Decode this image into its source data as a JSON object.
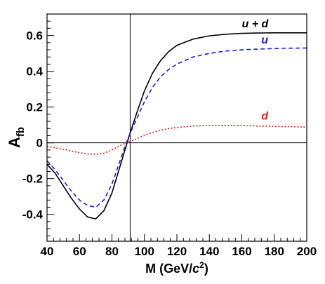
{
  "chart_data": {
    "type": "line",
    "xlabel": {
      "main": "M (GeV/",
      "italic": "c",
      "sup": "2",
      "close": ")"
    },
    "ylabel": {
      "main": "A",
      "sub": "fb"
    },
    "xlim": [
      40,
      200
    ],
    "ylim": [
      -0.55,
      0.72
    ],
    "xticks": [
      40,
      60,
      80,
      100,
      120,
      140,
      160,
      180,
      200
    ],
    "xtick_labels": [
      "40",
      "60",
      "80",
      "100",
      "120",
      "140",
      "160",
      "180",
      "200"
    ],
    "yticks": [
      -0.4,
      -0.2,
      0,
      0.2,
      0.4,
      0.6
    ],
    "ytick_labels": [
      "-0.4",
      "-0.2",
      "0",
      "0.2",
      "0.4",
      "0.6"
    ],
    "reference_lines": {
      "vertical_x": 91.2,
      "horizontal_y": 0
    },
    "grid": false,
    "series": [
      {
        "name": "u + d",
        "color": "#000000",
        "style": "solid",
        "x": [
          40,
          45,
          50,
          55,
          60,
          65,
          70,
          75,
          80,
          85,
          88,
          91,
          95,
          100,
          105,
          110,
          115,
          120,
          130,
          140,
          150,
          160,
          170,
          180,
          190,
          200
        ],
        "y": [
          -0.12,
          -0.17,
          -0.24,
          -0.31,
          -0.37,
          -0.415,
          -0.425,
          -0.38,
          -0.28,
          -0.13,
          -0.04,
          0.05,
          0.16,
          0.29,
          0.39,
          0.46,
          0.51,
          0.545,
          0.58,
          0.598,
          0.607,
          0.612,
          0.614,
          0.615,
          0.615,
          0.615
        ]
      },
      {
        "name": "u",
        "color": "#1a1ae6",
        "style": "dashed",
        "x": [
          40,
          45,
          50,
          55,
          60,
          65,
          70,
          75,
          80,
          85,
          88,
          91,
          95,
          100,
          105,
          110,
          115,
          120,
          130,
          140,
          150,
          160,
          170,
          180,
          190,
          200
        ],
        "y": [
          -0.1,
          -0.15,
          -0.21,
          -0.27,
          -0.32,
          -0.35,
          -0.36,
          -0.32,
          -0.23,
          -0.1,
          -0.02,
          0.05,
          0.13,
          0.23,
          0.31,
          0.37,
          0.41,
          0.44,
          0.48,
          0.5,
          0.513,
          0.52,
          0.524,
          0.527,
          0.529,
          0.53
        ]
      },
      {
        "name": "d",
        "color": "#e61a1a",
        "style": "dotted",
        "x": [
          40,
          45,
          50,
          55,
          60,
          65,
          70,
          75,
          80,
          85,
          88,
          91,
          95,
          100,
          105,
          110,
          115,
          120,
          130,
          140,
          150,
          160,
          170,
          180,
          190,
          200
        ],
        "y": [
          -0.02,
          -0.028,
          -0.036,
          -0.046,
          -0.055,
          -0.062,
          -0.064,
          -0.058,
          -0.04,
          -0.016,
          -0.003,
          0.008,
          0.022,
          0.042,
          0.058,
          0.07,
          0.08,
          0.086,
          0.094,
          0.097,
          0.097,
          0.096,
          0.094,
          0.092,
          0.09,
          0.088
        ]
      }
    ],
    "series_labels": [
      {
        "text": "u + d",
        "color": "#000000",
        "x": 160,
        "y": 0.645
      },
      {
        "text": "u",
        "color": "#1a1ae6",
        "x": 172,
        "y": 0.555
      },
      {
        "text": "d",
        "color": "#e61a1a",
        "x": 172,
        "y": 0.13
      }
    ]
  }
}
